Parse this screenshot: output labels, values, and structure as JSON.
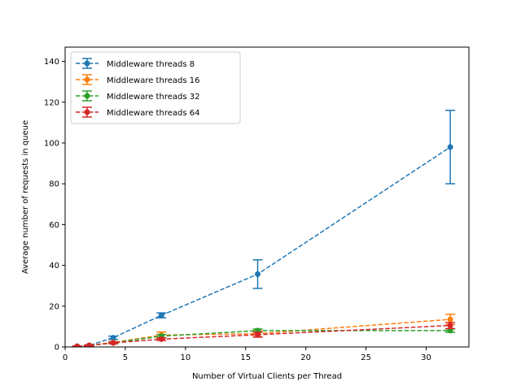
{
  "chart_data": {
    "type": "line",
    "xlabel": "Number of Virtual Clients per Thread",
    "ylabel": "Average number of requests in queue",
    "xlim": [
      0,
      33.55
    ],
    "ylim": [
      0,
      147
    ],
    "xticks": [
      0,
      5,
      10,
      15,
      20,
      25,
      30
    ],
    "yticks": [
      0,
      20,
      40,
      60,
      80,
      100,
      120,
      140
    ],
    "grid": false,
    "legend_position": "top-left",
    "line_style": "dashed",
    "marker": "circle",
    "error_bars": true,
    "x": [
      1,
      2,
      4,
      8,
      16,
      32
    ],
    "series": [
      {
        "name": "Middleware threads 8",
        "color": "#1f77b4",
        "values": [
          0.3,
          0.8,
          4.5,
          15.5,
          35.7,
          98
        ],
        "errors": [
          0.2,
          0.3,
          0.8,
          1.2,
          7.0,
          18.0
        ]
      },
      {
        "name": "Middleware threads 16",
        "color": "#ff7f0e",
        "values": [
          0.3,
          0.8,
          2.2,
          5.8,
          6.5,
          13.5
        ],
        "errors": [
          0.2,
          0.3,
          0.4,
          1.5,
          1.5,
          2.5
        ]
      },
      {
        "name": "Middleware threads 32",
        "color": "#2ca02c",
        "values": [
          0.3,
          0.7,
          2.0,
          5.3,
          8.0,
          8.0
        ],
        "errors": [
          0.2,
          0.3,
          0.4,
          0.8,
          0.8,
          0.8
        ]
      },
      {
        "name": "Middleware threads 64",
        "color": "#d62728",
        "values": [
          0.3,
          0.7,
          2.0,
          3.8,
          6.0,
          10.5
        ],
        "errors": [
          0.2,
          0.3,
          0.4,
          0.6,
          1.2,
          1.5
        ]
      }
    ]
  }
}
